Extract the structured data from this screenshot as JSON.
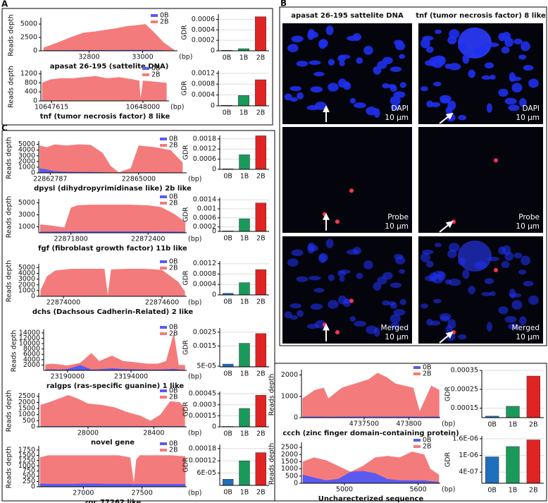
{
  "panels": [
    "A",
    "B",
    "C"
  ],
  "microscopy": {
    "columns": [
      "apasat 26-195 sattelite DNA",
      "tnf (tumor necrosis factor) 8 like"
    ],
    "rows": [
      {
        "channel": "DAPI",
        "scale": "10 μm"
      },
      {
        "channel": "Probe",
        "scale": "10 μm"
      },
      {
        "channel": "Merged",
        "scale": "10 μm"
      }
    ]
  },
  "chart_data": [
    {
      "type": "area",
      "title": "apasat 26-195 (sattelite DNA)",
      "ylabel": "Reads depth",
      "xunit": "(bp)",
      "x": [
        32630,
        32680,
        32730,
        32780,
        32820,
        32860,
        32900,
        32940,
        32980,
        33010,
        33040,
        33080,
        33120
      ],
      "series": [
        {
          "name": "0B",
          "color": "#5a5af0",
          "values": [
            80,
            100,
            120,
            130,
            130,
            140,
            140,
            150,
            150,
            160,
            130,
            80,
            20
          ]
        },
        {
          "name": "2B",
          "color": "#f47b7b",
          "values": [
            600,
            1500,
            2500,
            3400,
            3600,
            3900,
            4200,
            4600,
            4800,
            5000,
            3600,
            1500,
            100
          ]
        }
      ],
      "xlim": [
        32620,
        33130
      ],
      "ylim": [
        0,
        5800
      ],
      "xticks": [
        32800,
        33000
      ],
      "yticks": [
        0,
        2500,
        5000
      ]
    },
    {
      "type": "bar",
      "ylabel": "GDR",
      "categories": [
        "0B",
        "1B",
        "2B"
      ],
      "values": [
        1e-05,
        4e-05,
        0.00065
      ],
      "colors": [
        "#1f6fbf",
        "#1a9a5a",
        "#e02424"
      ],
      "ylim": [
        0,
        0.0007
      ],
      "yticks": [
        0,
        0.0002,
        0.0004,
        0.0006
      ]
    },
    {
      "type": "area",
      "title": "tnf (tumor necrosis factor) 8 like",
      "ylabel": "Reads depth",
      "xunit": "(bp)",
      "x": [
        10647575,
        10647610,
        10647650,
        10647700,
        10647750,
        10647800,
        10647850,
        10647900,
        10647960,
        10647985,
        10647990,
        10648000,
        10648050,
        10648100
      ],
      "series": [
        {
          "name": "0B",
          "color": "#5a5af0",
          "values": [
            10,
            10,
            10,
            10,
            10,
            10,
            10,
            10,
            10,
            10,
            5,
            10,
            10,
            10
          ]
        },
        {
          "name": "2B",
          "color": "#f47b7b",
          "values": [
            800,
            950,
            1000,
            1000,
            1050,
            1100,
            1000,
            1050,
            950,
            900,
            100,
            900,
            850,
            800
          ]
        }
      ],
      "xlim": [
        10647570,
        10648110
      ],
      "ylim": [
        0,
        1250
      ],
      "xticks": [
        10647615,
        10648000
      ],
      "yticks": [
        0,
        400,
        800,
        1200
      ]
    },
    {
      "type": "bar",
      "ylabel": "GDR",
      "categories": [
        "0B",
        "1B",
        "2B"
      ],
      "values": [
        2e-05,
        0.00038,
        0.00096
      ],
      "colors": [
        "#1f6fbf",
        "#1a9a5a",
        "#e02424"
      ],
      "ylim": [
        0,
        0.0013
      ],
      "yticks": [
        0,
        0.0004,
        0.0008,
        0.0012
      ]
    },
    {
      "type": "area",
      "title": "dpysl (dihydropyrimidinase like) 2b like",
      "ylabel": "Reads depth",
      "xunit": "(bp)",
      "x": [
        22862520,
        22862700,
        22862900,
        22863200,
        22863500,
        22863800,
        22864100,
        22864300,
        22864500,
        22864800,
        22865000,
        22865400,
        22865800,
        22866100
      ],
      "series": [
        {
          "name": "0B",
          "color": "#5a5af0",
          "values": [
            800,
            600,
            300,
            200,
            150,
            150,
            100,
            50,
            10,
            30,
            100,
            100,
            80,
            50
          ]
        },
        {
          "name": "2B",
          "color": "#f47b7b",
          "values": [
            4800,
            4500,
            5000,
            4800,
            5000,
            4900,
            3500,
            1200,
            100,
            800,
            4800,
            4500,
            4000,
            1800
          ]
        }
      ],
      "xlim": [
        22862500,
        22866200
      ],
      "ylim": [
        0,
        5200
      ],
      "xticks": [
        22862787,
        22865000
      ],
      "yticks": [
        0,
        1000,
        2000,
        3000,
        4000,
        5000
      ]
    },
    {
      "type": "bar",
      "ylabel": "GDR",
      "categories": [
        "0B",
        "1B",
        "2B"
      ],
      "values": [
        3e-05,
        0.00086,
        0.00198
      ],
      "colors": [
        "#1f6fbf",
        "#1a9a5a",
        "#e02424"
      ],
      "ylim": [
        0,
        0.002
      ],
      "yticks": [
        0,
        0.0006,
        0.0012,
        0.0018
      ]
    },
    {
      "type": "area",
      "title": "fgf (fibroblast growth factor) 11b like",
      "ylabel": "Reads depth",
      "xunit": "(bp)",
      "x": [
        22871560,
        22871650,
        22871750,
        22871800,
        22871850,
        22871950,
        22872100,
        22872250,
        22872400,
        22872500,
        22872600,
        22872690
      ],
      "series": [
        {
          "name": "0B",
          "color": "#5a5af0",
          "values": [
            200,
            210,
            220,
            230,
            230,
            240,
            240,
            240,
            230,
            220,
            200,
            180
          ]
        },
        {
          "name": "2B",
          "color": "#f47b7b",
          "values": [
            1400,
            1200,
            900,
            4200,
            4600,
            4700,
            4700,
            4700,
            4600,
            4300,
            3200,
            1800
          ]
        }
      ],
      "xlim": [
        22871550,
        22872700
      ],
      "ylim": [
        0,
        5300
      ],
      "xticks": [
        22871800,
        22872400
      ],
      "yticks": [
        1000,
        3000,
        5000
      ]
    },
    {
      "type": "bar",
      "ylabel": "GDR",
      "categories": [
        "0B",
        "1B",
        "2B"
      ],
      "values": [
        2e-05,
        0.00056,
        0.00126
      ],
      "colors": [
        "#1f6fbf",
        "#1a9a5a",
        "#e02424"
      ],
      "ylim": [
        0,
        0.0015
      ],
      "yticks": [
        0,
        0.0002,
        0.0006,
        0.001,
        0.0014
      ]
    },
    {
      "type": "area",
      "title": "dchs (Dachsous Cadherin-Related) 2 like",
      "ylabel": "Reads depth",
      "xunit": "(bp)",
      "x": [
        22873860,
        22873900,
        22873950,
        22874050,
        22874150,
        22874250,
        22874270,
        22874290,
        22874400,
        22874500,
        22874600,
        22874700,
        22874740
      ],
      "series": [
        {
          "name": "0B",
          "color": "#5a5af0",
          "values": [
            30,
            30,
            30,
            30,
            30,
            30,
            20,
            30,
            30,
            30,
            30,
            30,
            30
          ]
        },
        {
          "name": "2B",
          "color": "#f47b7b",
          "values": [
            1000,
            3500,
            4500,
            4800,
            4800,
            4800,
            200,
            4700,
            4800,
            4800,
            4600,
            2500,
            800
          ]
        }
      ],
      "xlim": [
        22873850,
        22874750
      ],
      "ylim": [
        0,
        5300
      ],
      "xticks": [
        22874000,
        22874600
      ],
      "yticks": [
        0,
        1000,
        2000,
        3000,
        4000,
        5000
      ]
    },
    {
      "type": "bar",
      "ylabel": "GDR",
      "categories": [
        "0B",
        "1B",
        "2B"
      ],
      "values": [
        6e-05,
        0.00047,
        0.00097
      ],
      "colors": [
        "#1f6fbf",
        "#1a9a5a",
        "#e02424"
      ],
      "ylim": [
        0,
        0.0013
      ],
      "yticks": [
        0,
        0.0004,
        0.0008,
        0.0012
      ]
    },
    {
      "type": "area",
      "title": "ralgps (ras-specific guanine) 1 like",
      "ylabel": "Reads depth",
      "xunit": "(bp)",
      "x": [
        23188600,
        23189000,
        23189500,
        23190000,
        23190800,
        23191500,
        23192000,
        23192800,
        23193500,
        23194300,
        23195000,
        23195700,
        23196200,
        23196700,
        23197000,
        23197400
      ],
      "series": [
        {
          "name": "0B",
          "color": "#5a5af0",
          "values": [
            300,
            400,
            300,
            500,
            2000,
            300,
            400,
            800,
            500,
            400,
            300,
            300,
            400,
            600,
            300,
            200
          ]
        },
        {
          "name": "2B",
          "color": "#f47b7b",
          "values": [
            2200,
            2500,
            2200,
            1800,
            2800,
            6500,
            3500,
            5500,
            3500,
            3000,
            2500,
            2500,
            3500,
            14000,
            2000,
            2000
          ]
        }
      ],
      "xlim": [
        23188500,
        23197500
      ],
      "ylim": [
        0,
        14500
      ],
      "xticks": [
        23190000,
        23194000
      ],
      "yticks": [
        2000,
        4000,
        6000,
        8000,
        10000,
        12000,
        14000
      ]
    },
    {
      "type": "bar",
      "ylabel": "GDR",
      "categories": [
        "0B",
        "1B",
        "2B"
      ],
      "values": [
        0.0002,
        0.0017,
        0.0024
      ],
      "colors": [
        "#1f6fbf",
        "#1a9a5a",
        "#e02424"
      ],
      "ylim": [
        0,
        0.0028
      ],
      "yticks": [
        {
          "value": 5e-05,
          "label": "5E-05"
        },
        0.0015,
        0.0025
      ]
    },
    {
      "type": "area",
      "title": "novel gene",
      "ylabel": "Reads depth",
      "xunit": "(bp)",
      "x": [
        27710,
        27760,
        27820,
        27880,
        27940,
        28000,
        28080,
        28160,
        28240,
        28320,
        28380,
        28440,
        28500,
        28560,
        28590
      ],
      "series": [
        {
          "name": "0B",
          "color": "#5a5af0",
          "values": [
            50,
            50,
            50,
            50,
            50,
            50,
            50,
            50,
            50,
            50,
            40,
            50,
            50,
            50,
            50
          ]
        },
        {
          "name": "2B",
          "color": "#f47b7b",
          "values": [
            1800,
            2000,
            2300,
            2600,
            2300,
            1900,
            1800,
            1600,
            1200,
            900,
            500,
            1000,
            2100,
            2000,
            1500
          ]
        }
      ],
      "xlim": [
        27700,
        28600
      ],
      "ylim": [
        0,
        2600
      ],
      "xticks": [
        28000,
        28400
      ],
      "yticks": [
        0,
        500,
        1000,
        1500,
        2000,
        2500
      ]
    },
    {
      "type": "bar",
      "ylabel": "GDR",
      "categories": [
        "0B",
        "1B",
        "2B"
      ],
      "values": [
        5e-06,
        0.00025,
        0.00043
      ],
      "colors": [
        "#1f6fbf",
        "#1a9a5a",
        "#e02424"
      ],
      "ylim": [
        0,
        0.00048
      ],
      "yticks": [
        0,
        0.00015,
        0.0003,
        0.00045
      ]
    },
    {
      "type": "area",
      "title": "zgc 77262 like",
      "ylabel": "Reads depth",
      "xunit": "(bp)",
      "x": [
        26630,
        26700,
        26800,
        26900,
        27000,
        27100,
        27200,
        27300,
        27400,
        27430,
        27450,
        27480,
        27550,
        27650,
        27750,
        27870
      ],
      "series": [
        {
          "name": "0B",
          "color": "#5a5af0",
          "values": [
            150,
            140,
            140,
            140,
            150,
            150,
            140,
            140,
            140,
            120,
            140,
            130,
            130,
            130,
            130,
            130
          ]
        },
        {
          "name": "2B",
          "color": "#f47b7b",
          "values": [
            1400,
            1500,
            1500,
            1500,
            1500,
            1500,
            1500,
            1500,
            1400,
            200,
            1300,
            1500,
            1500,
            1500,
            1500,
            1450
          ]
        }
      ],
      "xlim": [
        26620,
        27880
      ],
      "ylim": [
        0,
        1850
      ],
      "xticks": [
        27000,
        27500
      ],
      "yticks": [
        0,
        250,
        500,
        750,
        1000,
        1250,
        1500,
        1750
      ]
    },
    {
      "type": "bar",
      "ylabel": "GDR",
      "categories": [
        "0B",
        "1B",
        "2B"
      ],
      "values": [
        3e-05,
        0.00012,
        0.00016
      ],
      "colors": [
        "#1f6fbf",
        "#1a9a5a",
        "#e02424"
      ],
      "ylim": [
        0,
        0.0002
      ],
      "yticks": [
        {
          "value": 6e-05,
          "label": "6E-05"
        },
        0.00012,
        0.00018
      ]
    },
    {
      "type": "area",
      "title": "ccch (zinc finger domain-containing protein)",
      "ylabel": "Reads depth",
      "xunit": "(bp)",
      "x": [
        4736810,
        4736950,
        4737050,
        4737100,
        4737250,
        4737400,
        4737550,
        4737650,
        4737750,
        4737850,
        4737950,
        4738050,
        4738120,
        4738250,
        4738340
      ],
      "series": [
        {
          "name": "0B",
          "color": "#5a5af0",
          "values": [
            50,
            50,
            50,
            40,
            50,
            50,
            50,
            50,
            50,
            50,
            50,
            50,
            40,
            50,
            50
          ]
        },
        {
          "name": "2B",
          "color": "#f47b7b",
          "values": [
            900,
            1300,
            1400,
            900,
            1400,
            1600,
            1800,
            2100,
            1900,
            1600,
            1500,
            1400,
            300,
            1500,
            1300
          ]
        }
      ],
      "xlim": [
        4736800,
        4738350
      ],
      "ylim": [
        0,
        2150
      ],
      "xticks": [
        4737500,
        {
          "value": 4738000,
          "label": "473800"
        }
      ],
      "yticks": [
        0,
        1000,
        2000
      ]
    },
    {
      "type": "bar",
      "ylabel": "GDR",
      "categories": [
        "0B",
        "1B",
        "2B"
      ],
      "values": [
        0.000108,
        0.00016,
        0.00032
      ],
      "colors": [
        "#1f6fbf",
        "#1a9a5a",
        "#e02424"
      ],
      "ylim": [
        0.0001,
        0.00035
      ],
      "yticks": [
        0.00015,
        0.00025,
        0.00035
      ]
    },
    {
      "type": "area",
      "title": "Uncharecterized sequence",
      "ylabel": "Reads depth",
      "xunit": "(bp)",
      "x": [
        4660,
        4750,
        4850,
        4950,
        5050,
        5150,
        5250,
        5350,
        5450,
        5550,
        5650,
        5700,
        5770
      ],
      "series": [
        {
          "name": "0B",
          "color": "#5a5af0",
          "values": [
            600,
            400,
            200,
            300,
            800,
            850,
            700,
            300,
            200,
            200,
            200,
            150,
            100
          ]
        },
        {
          "name": "2B",
          "color": "#f47b7b",
          "values": [
            1500,
            1800,
            1600,
            1200,
            800,
            1200,
            1800,
            1900,
            1800,
            2200,
            2000,
            1000,
            600
          ]
        }
      ],
      "xlim": [
        4650,
        5780
      ],
      "ylim": [
        0,
        2700
      ],
      "xticks": [
        5000,
        5600
      ],
      "yticks": [
        0,
        500,
        1000,
        1500,
        2000,
        2500
      ]
    },
    {
      "type": "bar",
      "ylabel": "GDR",
      "categories": [
        "0B",
        "1B",
        "2B"
      ],
      "values": [
        9.5e-07,
        1.32e-06,
        1.56e-06
      ],
      "colors": [
        "#1f6fbf",
        "#1a9a5a",
        "#e02424"
      ],
      "ylim": [
        0,
        1.7e-06
      ],
      "yticks": [
        {
          "value": 4e-07,
          "label": "4E-07"
        },
        {
          "value": 1e-06,
          "label": "1E-06"
        },
        {
          "value": 1.6e-06,
          "label": "1.6E-06"
        }
      ]
    }
  ]
}
